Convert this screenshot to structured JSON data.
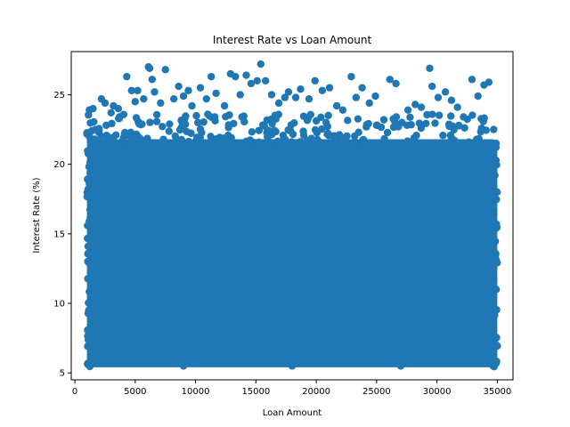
{
  "chart_data": {
    "type": "scatter",
    "title": "Interest Rate vs Loan Amount",
    "xlabel": "Loan Amount",
    "ylabel": "Interest Rate (%)",
    "xlim": [
      -300,
      36300
    ],
    "ylim": [
      4.5,
      28.1
    ],
    "xticks": [
      0,
      5000,
      10000,
      15000,
      20000,
      25000,
      30000,
      35000
    ],
    "yticks": [
      5,
      10,
      15,
      20,
      25
    ],
    "grid": false,
    "legend": "none",
    "marker_color": "#1f77b4",
    "x_range": [
      1000,
      35000
    ],
    "y_range": [
      5.4,
      27.2
    ],
    "points": [
      [
        1200,
        23.9
      ],
      [
        1500,
        24.0
      ],
      [
        1400,
        22.4
      ],
      [
        1700,
        22.5
      ],
      [
        1300,
        21.6
      ],
      [
        1500,
        20.3
      ],
      [
        1900,
        19.6
      ],
      [
        1200,
        18.6
      ],
      [
        2200,
        24.7
      ],
      [
        2500,
        24.4
      ],
      [
        2600,
        22.8
      ],
      [
        3000,
        23.7
      ],
      [
        3200,
        24.2
      ],
      [
        3600,
        24.0
      ],
      [
        3400,
        22.1
      ],
      [
        4300,
        26.3
      ],
      [
        4700,
        25.3
      ],
      [
        5000,
        24.5
      ],
      [
        5200,
        25.3
      ],
      [
        5700,
        24.7
      ],
      [
        6100,
        27.0
      ],
      [
        6400,
        26.1
      ],
      [
        6600,
        25.2
      ],
      [
        6200,
        26.9
      ],
      [
        7100,
        24.4
      ],
      [
        7500,
        26.8
      ],
      [
        8200,
        24.7
      ],
      [
        8600,
        25.6
      ],
      [
        9000,
        24.9
      ],
      [
        9400,
        25.3
      ],
      [
        9700,
        24.2
      ],
      [
        10400,
        25.5
      ],
      [
        10900,
        24.7
      ],
      [
        11300,
        26.3
      ],
      [
        11700,
        25.1
      ],
      [
        12400,
        24.2
      ],
      [
        12900,
        26.5
      ],
      [
        13300,
        26.3
      ],
      [
        13700,
        25.0
      ],
      [
        14200,
        26.4
      ],
      [
        14600,
        25.8
      ],
      [
        15100,
        26.0
      ],
      [
        15400,
        27.2
      ],
      [
        15800,
        26.0
      ],
      [
        16300,
        25.0
      ],
      [
        16900,
        24.4
      ],
      [
        17400,
        24.8
      ],
      [
        17700,
        25.2
      ],
      [
        18300,
        24.8
      ],
      [
        18700,
        25.4
      ],
      [
        19400,
        24.7
      ],
      [
        19900,
        26.0
      ],
      [
        20500,
        25.3
      ],
      [
        21100,
        25.5
      ],
      [
        21700,
        24.2
      ],
      [
        22200,
        23.9
      ],
      [
        22900,
        26.3
      ],
      [
        23300,
        24.8
      ],
      [
        23800,
        25.5
      ],
      [
        24400,
        24.4
      ],
      [
        24900,
        24.9
      ],
      [
        25600,
        23.2
      ],
      [
        26100,
        26.1
      ],
      [
        26600,
        25.8
      ],
      [
        27100,
        23.0
      ],
      [
        27600,
        23.9
      ],
      [
        28200,
        24.3
      ],
      [
        28700,
        24.1
      ],
      [
        29400,
        26.9
      ],
      [
        29600,
        25.6
      ],
      [
        30100,
        24.8
      ],
      [
        30700,
        25.2
      ],
      [
        31200,
        24.6
      ],
      [
        31700,
        24.1
      ],
      [
        32200,
        23.4
      ],
      [
        32900,
        26.1
      ],
      [
        33400,
        24.9
      ],
      [
        33900,
        25.7
      ],
      [
        34300,
        25.9
      ],
      [
        34700,
        22.5
      ],
      [
        34900,
        21.5
      ],
      [
        34600,
        20.4
      ],
      [
        34800,
        19.2
      ],
      [
        1100,
        5.7
      ],
      [
        34900,
        5.7
      ],
      [
        18000,
        5.5
      ],
      [
        9000,
        5.5
      ],
      [
        27000,
        5.5
      ]
    ]
  }
}
